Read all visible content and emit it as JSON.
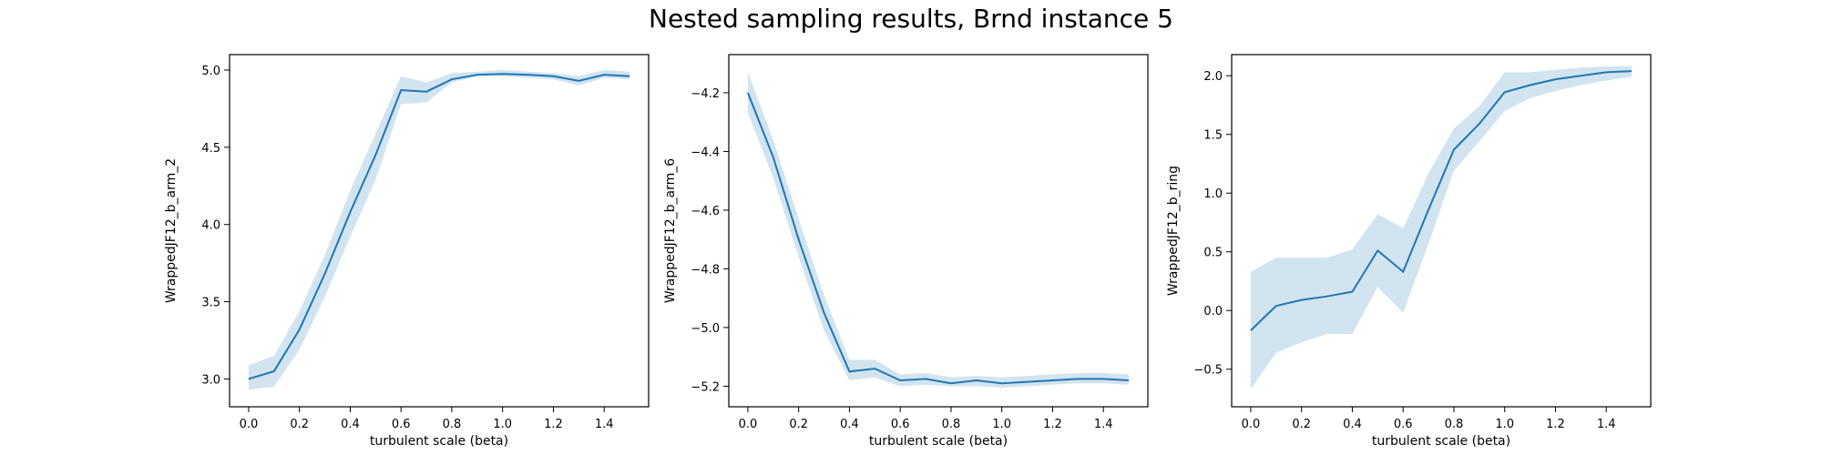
{
  "figure": {
    "title": "Nested sampling results, Brnd instance 5"
  },
  "style": {
    "line_color": "#1f77b4",
    "band_color": "#1f77b4",
    "band_opacity": 0.2
  },
  "chart_data": [
    {
      "type": "line",
      "xlabel": "turbulent scale (beta)",
      "ylabel": "WrappedJF12_b_arm_2",
      "xlim": [
        -0.075,
        1.575
      ],
      "ylim": [
        2.82,
        5.1
      ],
      "xticks": [
        0.0,
        0.2,
        0.4,
        0.6,
        0.8,
        1.0,
        1.2,
        1.4
      ],
      "xtick_labels": [
        "0.0",
        "0.2",
        "0.4",
        "0.6",
        "0.8",
        "1.0",
        "1.2",
        "1.4"
      ],
      "yticks": [
        3.0,
        3.5,
        4.0,
        4.5,
        5.0
      ],
      "ytick_labels": [
        "3.0",
        "3.5",
        "4.0",
        "4.5",
        "5.0"
      ],
      "x": [
        0.0,
        0.1,
        0.2,
        0.3,
        0.4,
        0.5,
        0.6,
        0.7,
        0.8,
        0.9,
        1.0,
        1.1,
        1.2,
        1.3,
        1.4,
        1.5
      ],
      "series": [
        {
          "values": [
            3.0,
            3.05,
            3.32,
            3.68,
            4.08,
            4.45,
            4.87,
            4.86,
            4.94,
            4.97,
            4.975,
            4.97,
            4.96,
            4.93,
            4.97,
            4.96
          ],
          "lower": [
            2.93,
            2.95,
            3.19,
            3.53,
            3.92,
            4.29,
            4.78,
            4.79,
            4.92,
            4.96,
            4.96,
            4.95,
            4.94,
            4.9,
            4.95,
            4.94
          ],
          "upper": [
            3.09,
            3.15,
            3.44,
            3.8,
            4.22,
            4.59,
            4.96,
            4.92,
            4.98,
            4.99,
            5.0,
            4.99,
            4.98,
            4.96,
            5.0,
            4.99
          ]
        }
      ]
    },
    {
      "type": "line",
      "xlabel": "turbulent scale (beta)",
      "ylabel": "WrappedJF12_b_arm_6",
      "xlim": [
        -0.075,
        1.575
      ],
      "ylim": [
        -5.27,
        -4.07
      ],
      "xticks": [
        0.0,
        0.2,
        0.4,
        0.6,
        0.8,
        1.0,
        1.2,
        1.4
      ],
      "xtick_labels": [
        "0.0",
        "0.2",
        "0.4",
        "0.6",
        "0.8",
        "1.0",
        "1.2",
        "1.4"
      ],
      "yticks": [
        -5.2,
        -5.0,
        -4.8,
        -4.6,
        -4.4,
        -4.2
      ],
      "ytick_labels": [
        "−5.2",
        "−5.0",
        "−4.8",
        "−4.6",
        "−4.4",
        "−4.2"
      ],
      "x": [
        0.0,
        0.1,
        0.2,
        0.3,
        0.4,
        0.5,
        0.6,
        0.7,
        0.8,
        0.9,
        1.0,
        1.1,
        1.2,
        1.3,
        1.4,
        1.5
      ],
      "series": [
        {
          "values": [
            -4.2,
            -4.42,
            -4.7,
            -4.95,
            -5.15,
            -5.14,
            -5.18,
            -5.175,
            -5.19,
            -5.18,
            -5.19,
            -5.185,
            -5.18,
            -5.175,
            -5.175,
            -5.18
          ],
          "lower": [
            -4.27,
            -4.49,
            -4.76,
            -5.01,
            -5.18,
            -5.17,
            -5.2,
            -5.195,
            -5.2,
            -5.2,
            -5.205,
            -5.2,
            -5.195,
            -5.19,
            -5.19,
            -5.195
          ],
          "upper": [
            -4.13,
            -4.36,
            -4.63,
            -4.89,
            -5.11,
            -5.11,
            -5.16,
            -5.155,
            -5.17,
            -5.165,
            -5.17,
            -5.165,
            -5.16,
            -5.155,
            -5.155,
            -5.16
          ]
        }
      ]
    },
    {
      "type": "line",
      "xlabel": "turbulent scale (beta)",
      "ylabel": "WrappedJF12_b_ring",
      "xlim": [
        -0.075,
        1.575
      ],
      "ylim": [
        -0.82,
        2.18
      ],
      "xticks": [
        0.0,
        0.2,
        0.4,
        0.6,
        0.8,
        1.0,
        1.2,
        1.4
      ],
      "xtick_labels": [
        "0.0",
        "0.2",
        "0.4",
        "0.6",
        "0.8",
        "1.0",
        "1.2",
        "1.4"
      ],
      "yticks": [
        -0.5,
        0.0,
        0.5,
        1.0,
        1.5,
        2.0
      ],
      "ytick_labels": [
        "−0.5",
        "0.0",
        "0.5",
        "1.0",
        "1.5",
        "2.0"
      ],
      "x": [
        0.0,
        0.1,
        0.2,
        0.3,
        0.4,
        0.5,
        0.6,
        0.7,
        0.8,
        0.9,
        1.0,
        1.1,
        1.2,
        1.3,
        1.4,
        1.5
      ],
      "series": [
        {
          "values": [
            -0.17,
            0.04,
            0.09,
            0.12,
            0.16,
            0.51,
            0.33,
            0.86,
            1.37,
            1.59,
            1.86,
            1.92,
            1.97,
            2.0,
            2.03,
            2.04
          ],
          "lower": [
            -0.67,
            -0.36,
            -0.27,
            -0.2,
            -0.2,
            0.2,
            -0.02,
            0.57,
            1.19,
            1.44,
            1.7,
            1.81,
            1.87,
            1.92,
            1.96,
            1.99
          ],
          "upper": [
            0.33,
            0.45,
            0.45,
            0.45,
            0.52,
            0.82,
            0.7,
            1.17,
            1.55,
            1.74,
            2.03,
            2.03,
            2.05,
            2.07,
            2.08,
            2.08
          ]
        }
      ]
    }
  ]
}
